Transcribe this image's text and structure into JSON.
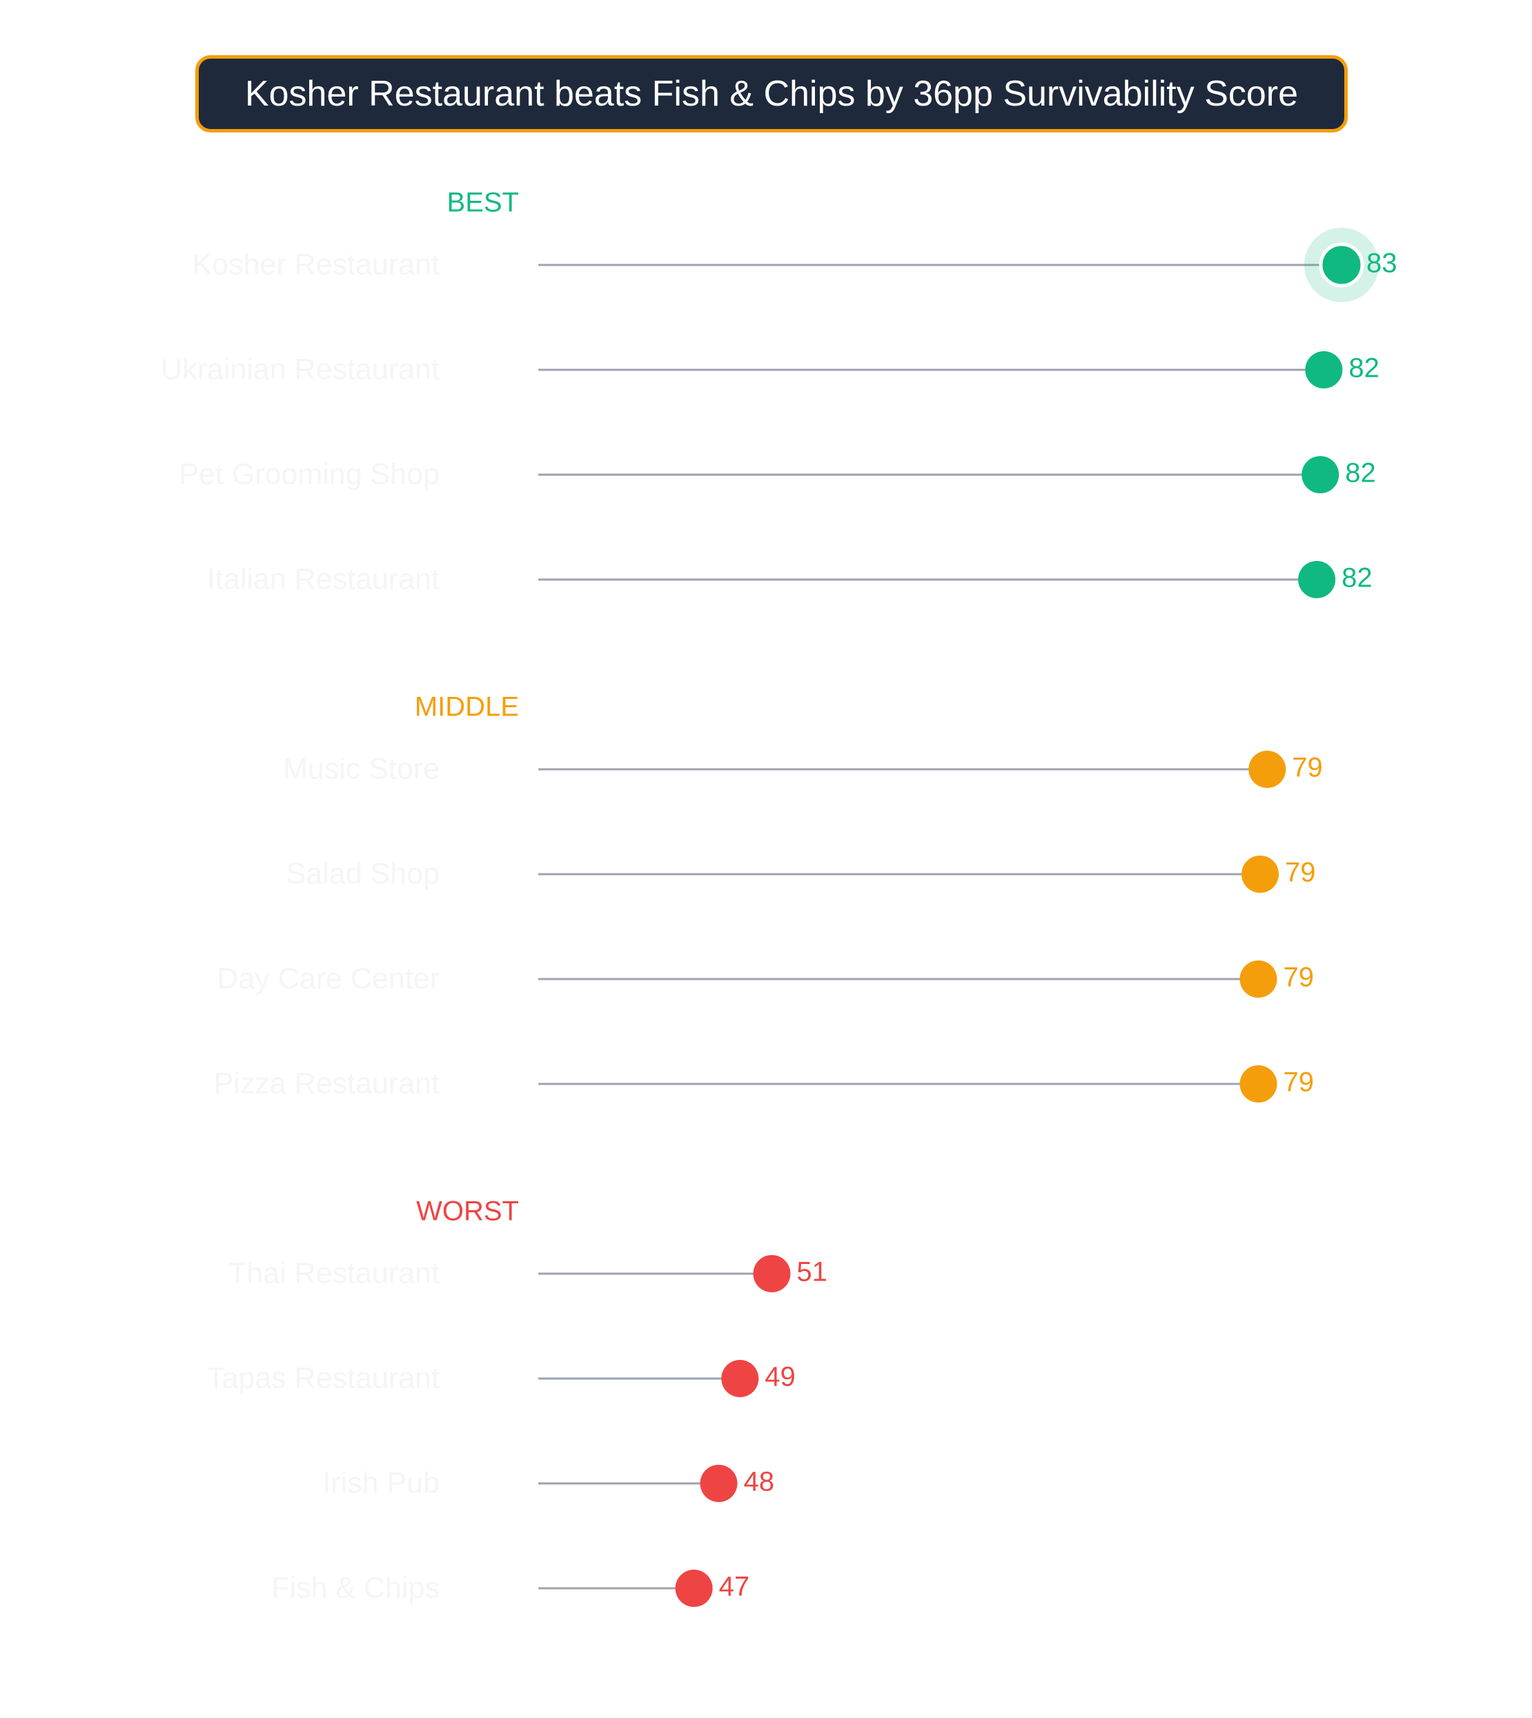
{
  "chart_data": {
    "type": "lollipop",
    "title": "Kosher Restaurant beats Fish & Chips by 36pp Survivability Score",
    "xlabel": "",
    "ylabel": "",
    "grid": false,
    "groups": [
      {
        "label": "BEST",
        "color": "#10b981",
        "items": [
          {
            "category": "Kosher Restaurant",
            "value": 83,
            "highlight": true
          },
          {
            "category": "Ukrainian Restaurant",
            "value": 82
          },
          {
            "category": "Pet Grooming Shop",
            "value": 82
          },
          {
            "category": "Italian Restaurant",
            "value": 82
          }
        ]
      },
      {
        "label": "MIDDLE",
        "color": "#f59e0b",
        "items": [
          {
            "category": "Music Store",
            "value": 79
          },
          {
            "category": "Salad Shop",
            "value": 79
          },
          {
            "category": "Day Care Center",
            "value": 79
          },
          {
            "category": "Pizza Restaurant",
            "value": 79
          }
        ]
      },
      {
        "label": "WORST",
        "color": "#ef4444",
        "items": [
          {
            "category": "Thai Restaurant",
            "value": 51
          },
          {
            "category": "Tapas Restaurant",
            "value": 49
          },
          {
            "category": "Irish Pub",
            "value": 48
          },
          {
            "category": "Fish & Chips",
            "value": 47
          }
        ]
      }
    ],
    "precise_values": [
      83.4,
      82.4,
      82.2,
      82.0,
      79.2,
      78.8,
      78.7,
      78.7,
      51.2,
      49.4,
      48.2,
      46.8
    ],
    "stem_color": "#9ca3af",
    "category_label_color": "#f5f5f5",
    "xlim": [
      38,
      85
    ]
  }
}
